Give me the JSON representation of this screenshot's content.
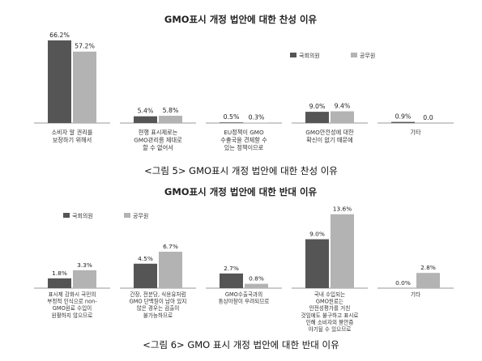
{
  "colors": {
    "series1": "#555555",
    "series2": "#b3b3b3",
    "axis": "#777777"
  },
  "chart_data": [
    {
      "type": "bar",
      "title": "GMO표시  개정 법안에 대한 찬성 이유",
      "caption": "<그림 5> GMO표시 개정 법안에 대한 찬성 이유",
      "legend_position": "top-right",
      "categories": [
        [
          "소비자 알 권리를",
          "보장하기 위해서"
        ],
        [
          "현행 표시제로는",
          "GMO관리를 제대로",
          "할 수 없어서"
        ],
        [
          "EU정책이 GMO",
          "수출국을 견제할 수",
          "있는 정책이므로"
        ],
        [
          "GMO안전성에 대한",
          "확신이 없기 때문에"
        ],
        [
          "기타"
        ]
      ],
      "series": [
        {
          "name": "국회의원",
          "values": [
            66.2,
            5.4,
            0.5,
            9.0,
            0.9
          ],
          "labels": [
            "66.2%",
            "5.4%",
            "0.5%",
            "9.0%",
            "0.9%"
          ]
        },
        {
          "name": "공무원",
          "values": [
            57.2,
            5.8,
            0.3,
            9.4,
            0.0
          ],
          "labels": [
            "57.2%",
            "5.8%",
            "0.3%",
            "9.4%",
            "0.0"
          ]
        }
      ],
      "ylim": [
        0,
        70
      ],
      "grid": false
    },
    {
      "type": "bar",
      "title": "GMO표시  개정 법안에 대한 반대 이유",
      "caption": "<그림 6> GMO 표시 개정 법안에 대한 반대 이유",
      "legend_position": "top-left",
      "categories": [
        [
          "표시제 강화시 국민의",
          "부정적 인식으로 non-",
          "GMO원료 수입이",
          "원활하지 않으므로"
        ],
        [
          "간장, 전분당, 식용유처럼",
          "GMO 단백질이 남아 있지",
          "않은 경우는 검출이",
          "불가능하므로"
        ],
        [
          "GMO수출국과의",
          "통상마찰이 우려되므로"
        ],
        [
          "국내 수입되는",
          "GMO원료는",
          "안전성평가를 거친",
          "것임에도 불구하고 표시로",
          "인해 소비자의 불안증",
          "야기될 수 있으므로"
        ],
        [
          "기타"
        ]
      ],
      "series": [
        {
          "name": "국회의원",
          "values": [
            1.8,
            4.5,
            2.7,
            9.0,
            0.0
          ],
          "labels": [
            "1.8%",
            "4.5%",
            "2.7%",
            "9.0%",
            "0.0%"
          ]
        },
        {
          "name": "공무원",
          "values": [
            3.3,
            6.7,
            0.8,
            13.6,
            2.8
          ],
          "labels": [
            "3.3%",
            "6.7%",
            "0.8%",
            "13.6%",
            "2.8%"
          ]
        }
      ],
      "ylim": [
        0,
        14
      ],
      "grid": false
    }
  ]
}
